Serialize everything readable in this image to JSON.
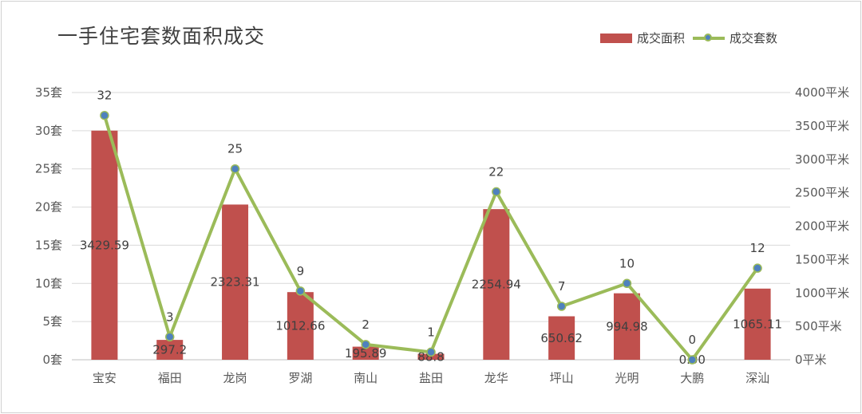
{
  "chart_data": {
    "type": "bar",
    "title": "一手住宅套数面积成交",
    "categories": [
      "宝安",
      "福田",
      "龙岗",
      "罗湖",
      "南山",
      "盐田",
      "龙华",
      "坪山",
      "光明",
      "大鹏",
      "深汕"
    ],
    "series": [
      {
        "name": "成交面积",
        "type": "bar",
        "axis": "right",
        "values": [
          3429.59,
          297.2,
          2323.31,
          1012.66,
          195.89,
          88.8,
          2254.94,
          650.62,
          994.98,
          0,
          1065.11
        ],
        "labels": [
          "3429.59",
          "297.2",
          "2323.31",
          "1012.66",
          "195.89",
          "88.8",
          "2254.94",
          "650.62",
          "994.98",
          "0.00",
          "1065.11"
        ],
        "color": "#c0504d"
      },
      {
        "name": "成交套数",
        "type": "line",
        "axis": "left",
        "values": [
          32,
          3,
          25,
          9,
          2,
          1,
          22,
          7,
          10,
          0,
          12
        ],
        "labels": [
          "32",
          "3",
          "25",
          "9",
          "2",
          "1",
          "22",
          "7",
          "10",
          "0",
          "12"
        ],
        "color": "#9bbb59",
        "marker_color": "#4f81bd"
      }
    ],
    "y_left": {
      "ylim": [
        0,
        35
      ],
      "ticks": [
        0,
        5,
        10,
        15,
        20,
        25,
        30,
        35
      ],
      "unit": "套"
    },
    "y_right": {
      "ylim": [
        0,
        4000
      ],
      "ticks": [
        0,
        500,
        1000,
        1500,
        2000,
        2500,
        3000,
        3500,
        4000
      ],
      "unit": "平米"
    },
    "grid": true,
    "legend_position": "top-right"
  }
}
